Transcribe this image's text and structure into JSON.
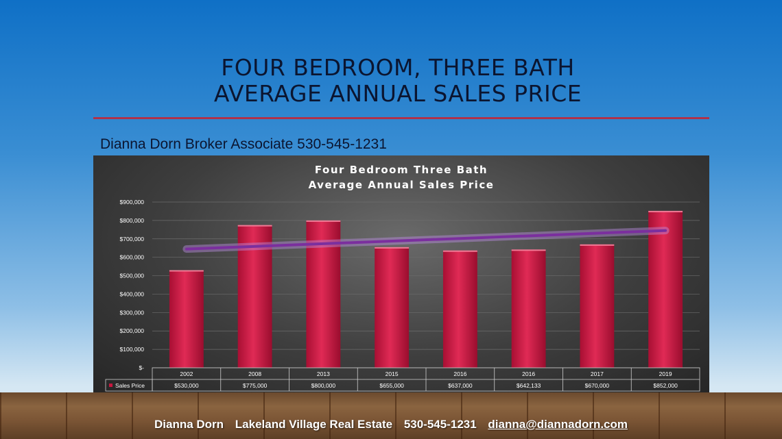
{
  "slide": {
    "title_line1": "FOUR BEDROOM,  THREE BATH",
    "title_line2": "AVERAGE ANNUAL SALES PRICE",
    "subtitle": "Dianna Dorn Broker Associate 530-545-1231"
  },
  "footer": {
    "name": "Dianna Dorn",
    "company": "Lakeland Village Real Estate",
    "phone": "530-545-1231",
    "email": "dianna@diannadorn.com"
  },
  "colors": {
    "bar": "#c8163f",
    "trendline": "#7b2f9e",
    "trend_glow": "#b98be0"
  },
  "chart_data": {
    "type": "bar",
    "title_line1": "Four Bedroom Three Bath",
    "title_line2": "Average Annual Sales Price",
    "categories": [
      "2002",
      "2008",
      "2013",
      "2015",
      "2016",
      "2016",
      "2017",
      "2019"
    ],
    "series": [
      {
        "name": "Sales Price",
        "values": [
          530000,
          775000,
          800000,
          655000,
          637000,
          642133,
          670000,
          852000
        ],
        "labels": [
          "$530,000",
          "$775,000",
          "$800,000",
          "$655,000",
          "$637,000",
          "$642,133",
          "$670,000",
          "$852,000"
        ]
      }
    ],
    "trendline": {
      "type": "linear",
      "start": 645000,
      "end": 745000
    },
    "ylim": [
      0,
      900000
    ],
    "yticks": [
      {
        "value": 900000,
        "label": "$900,000"
      },
      {
        "value": 800000,
        "label": "$800,000"
      },
      {
        "value": 700000,
        "label": "$700,000"
      },
      {
        "value": 600000,
        "label": "$600,000"
      },
      {
        "value": 500000,
        "label": "$500,000"
      },
      {
        "value": 400000,
        "label": "$400,000"
      },
      {
        "value": 300000,
        "label": "$300,000"
      },
      {
        "value": 200000,
        "label": "$200,000"
      },
      {
        "value": 100000,
        "label": "$100,000"
      },
      {
        "value": 0,
        "label": "$-"
      }
    ],
    "grid": true,
    "data_table": true
  }
}
